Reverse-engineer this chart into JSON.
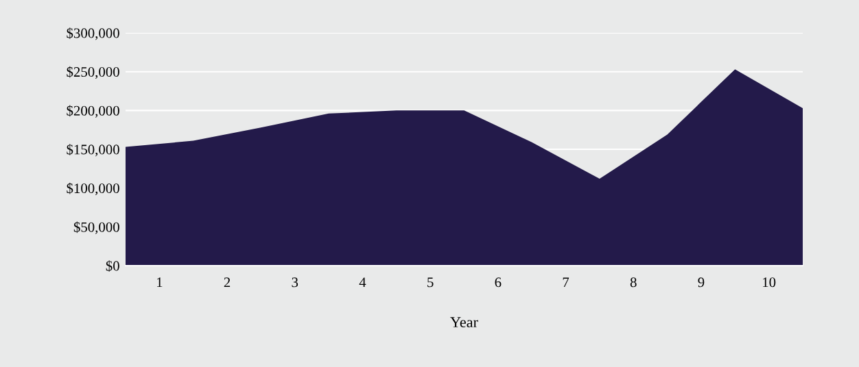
{
  "chart_data": {
    "type": "area",
    "xlabel": "Year",
    "x": [
      0,
      1,
      2,
      3,
      4,
      5,
      6,
      7,
      8,
      9,
      10
    ],
    "series": [
      {
        "color": "#231a4a",
        "values": [
          153000,
          161000,
          178000,
          196000,
          200000,
          200000,
          159000,
          112000,
          169000,
          253000,
          203000
        ]
      }
    ],
    "xlim": [
      0,
      10
    ],
    "xticks": [
      {
        "value": 0.5,
        "label": "1"
      },
      {
        "value": 1.5,
        "label": "2"
      },
      {
        "value": 2.5,
        "label": "3"
      },
      {
        "value": 3.5,
        "label": "4"
      },
      {
        "value": 4.5,
        "label": "5"
      },
      {
        "value": 5.5,
        "label": "6"
      },
      {
        "value": 6.5,
        "label": "7"
      },
      {
        "value": 7.5,
        "label": "8"
      },
      {
        "value": 8.5,
        "label": "9"
      },
      {
        "value": 9.5,
        "label": "10"
      },
      {
        "value": 1,
        "label": null
      },
      {
        "value": 2,
        "label": null
      },
      {
        "value": 3,
        "label": null
      },
      {
        "value": 4,
        "label": null
      },
      {
        "value": 5,
        "label": null
      },
      {
        "value": 6,
        "label": null
      },
      {
        "value": 7,
        "label": null
      },
      {
        "value": 8,
        "label": null
      },
      {
        "value": 9,
        "label": null
      }
    ],
    "ylim": [
      0,
      300000
    ],
    "yticks": [
      {
        "value": 0,
        "label": "$0"
      },
      {
        "value": 50000,
        "label": "$50,000"
      },
      {
        "value": 100000,
        "label": "$100,000"
      },
      {
        "value": 150000,
        "label": "$150,000"
      },
      {
        "value": 200000,
        "label": "$200,000"
      },
      {
        "value": 250000,
        "label": "$250,000"
      },
      {
        "value": 300000,
        "label": "$300,000"
      }
    ],
    "grid": "y"
  }
}
